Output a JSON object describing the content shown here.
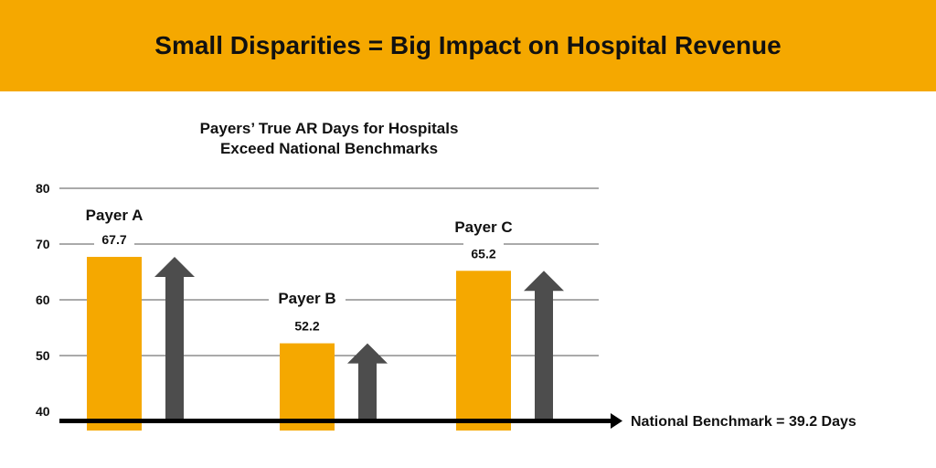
{
  "header": {
    "title": "Small Disparities = Big Impact on Hospital Revenue"
  },
  "chart_data": {
    "type": "bar",
    "title_lines": [
      "Payers’ True AR Days for Hospitals",
      "Exceed National Benchmarks"
    ],
    "categories": [
      "Payer A",
      "Payer B",
      "Payer C"
    ],
    "values": [
      67.7,
      52.2,
      65.2
    ],
    "value_labels": [
      "67.7",
      "52.2",
      "65.2"
    ],
    "yticks": [
      40,
      50,
      60,
      70,
      80
    ],
    "ylim": [
      38,
      80
    ],
    "grid": true,
    "benchmark": {
      "value": 39.2,
      "label": "National Benchmark = 39.2 Days"
    },
    "colors": {
      "bar": "#F5A800",
      "arrow": "#4D4D4D",
      "grid": "#555555",
      "banner": "#F5A800"
    }
  }
}
